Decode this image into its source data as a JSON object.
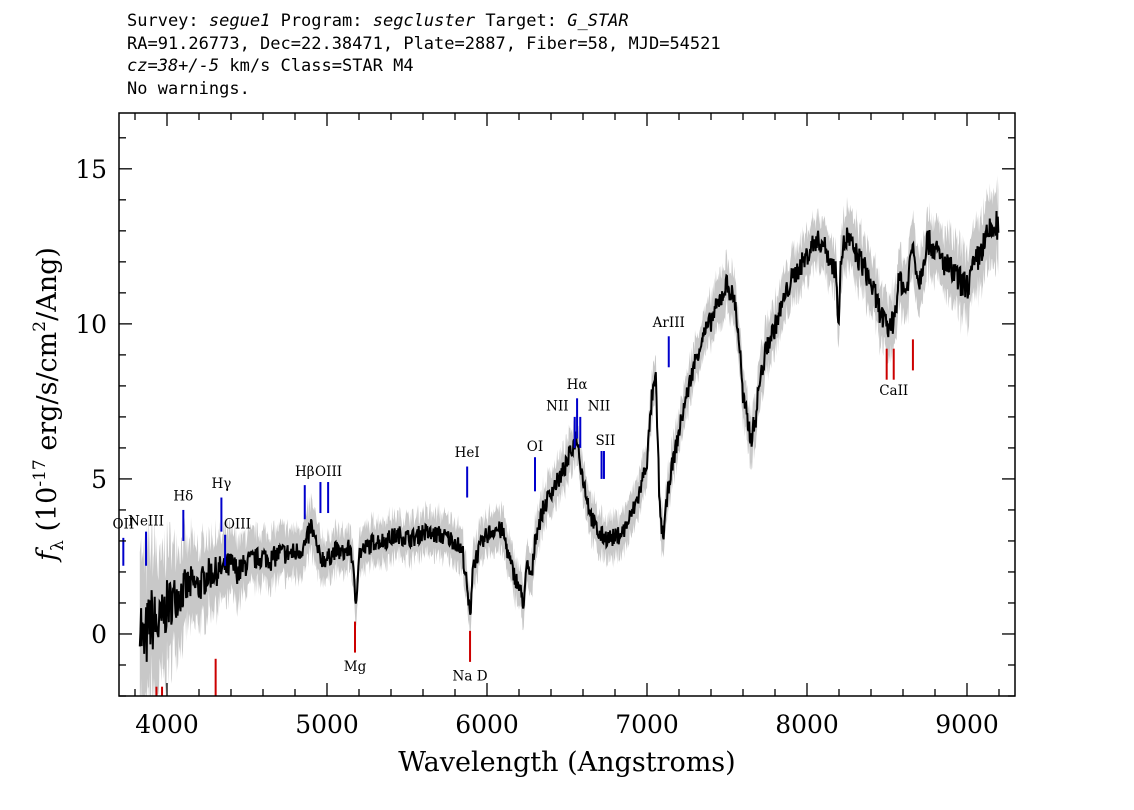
{
  "header": {
    "survey_label": "Survey:",
    "survey": "segue1",
    "program_label": "Program:",
    "program": "segcluster",
    "target_label": "Target:",
    "target": "G_STAR",
    "line2": "RA=91.26773, Dec=22.38471, Plate=2887, Fiber=58, MJD=54521",
    "cz": "cz=38+/-5",
    "cz_rest": "km/s Class=STAR M4",
    "warnings": "No warnings."
  },
  "chart_data": {
    "type": "line",
    "xlabel": "Wavelength (Angstroms)",
    "ylabel_main": "f",
    "ylabel_sub": "λ",
    "ylabel_pre": "(10",
    "ylabel_exp": "-17",
    "ylabel_mid": "erg/s/cm",
    "ylabel_exp2": "2",
    "ylabel_post": "/Ang)",
    "xlim": [
      3700,
      9300
    ],
    "ylim": [
      -2,
      16.8
    ],
    "x_ticks": [
      4000,
      5000,
      6000,
      7000,
      8000,
      9000
    ],
    "y_ticks": [
      0,
      5,
      10,
      15
    ],
    "series": [
      {
        "role": "flux",
        "color": "#000000",
        "x": [
          3830,
          3850,
          3900,
          3950,
          4000,
          4050,
          4100,
          4150,
          4200,
          4250,
          4300,
          4350,
          4400,
          4450,
          4500,
          4550,
          4600,
          4650,
          4700,
          4750,
          4800,
          4850,
          4870,
          4900,
          4950,
          5000,
          5050,
          5100,
          5150,
          5180,
          5200,
          5250,
          5300,
          5350,
          5400,
          5450,
          5500,
          5550,
          5600,
          5650,
          5700,
          5750,
          5800,
          5850,
          5880,
          5895,
          5910,
          5950,
          6000,
          6050,
          6100,
          6150,
          6200,
          6230,
          6250,
          6280,
          6300,
          6350,
          6400,
          6450,
          6500,
          6560,
          6600,
          6650,
          6700,
          6750,
          6800,
          6850,
          6900,
          6950,
          7000,
          7030,
          7055,
          7080,
          7100,
          7140,
          7180,
          7230,
          7300,
          7350,
          7400,
          7450,
          7500,
          7550,
          7580,
          7600,
          7650,
          7680,
          7700,
          7750,
          7800,
          7850,
          7900,
          7950,
          8000,
          8050,
          8100,
          8150,
          8183,
          8195,
          8210,
          8250,
          8300,
          8350,
          8400,
          8450,
          8500,
          8540,
          8580,
          8620,
          8660,
          8700,
          8750,
          8800,
          8850,
          8900,
          8950,
          9000,
          9050,
          9100,
          9150,
          9200
        ],
        "y": [
          0.8,
          -0.5,
          0.5,
          0.2,
          0.9,
          1.2,
          1.4,
          1.6,
          1.5,
          1.9,
          2.0,
          2.1,
          2.2,
          2.0,
          2.3,
          2.4,
          2.5,
          2.4,
          2.6,
          2.6,
          2.6,
          2.8,
          2.9,
          3.5,
          2.5,
          2.4,
          2.7,
          2.6,
          2.8,
          1.0,
          2.6,
          2.8,
          3.0,
          3.0,
          3.1,
          3.2,
          3.1,
          3.1,
          3.3,
          3.2,
          3.2,
          3.1,
          3.0,
          2.6,
          1.2,
          0.5,
          2.2,
          2.7,
          3.2,
          3.4,
          3.3,
          2.2,
          1.5,
          1.0,
          2.2,
          1.8,
          3.1,
          4.0,
          4.6,
          5.0,
          5.5,
          6.4,
          5.0,
          3.8,
          3.2,
          3.1,
          3.1,
          3.3,
          3.8,
          4.5,
          5.6,
          7.6,
          8.2,
          4.0,
          3.1,
          5.0,
          6.0,
          7.3,
          8.8,
          9.6,
          10.1,
          10.7,
          11.3,
          10.7,
          9.2,
          7.6,
          6.3,
          7.0,
          8.0,
          9.3,
          9.9,
          10.7,
          11.4,
          11.8,
          12.2,
          12.7,
          12.6,
          12.0,
          11.7,
          9.7,
          12.2,
          12.8,
          12.3,
          11.9,
          11.3,
          10.5,
          9.8,
          10.1,
          11.5,
          11.0,
          12.6,
          11.3,
          12.7,
          12.4,
          12.0,
          11.7,
          11.4,
          11.2,
          11.9,
          12.5,
          13.0,
          13.2
        ]
      },
      {
        "role": "error",
        "color": "#bfbfbf",
        "band": [
          2.0,
          2.0,
          1.8,
          1.6,
          1.4,
          1.2,
          1.1,
          1.0,
          0.9,
          0.9,
          0.8,
          0.8,
          0.8,
          0.7,
          0.7,
          0.6,
          0.6,
          0.6,
          0.6,
          0.6,
          0.6,
          0.6,
          0.6,
          0.6,
          0.6,
          0.5,
          0.5,
          0.5,
          0.5,
          0.5,
          0.5,
          0.5,
          0.5,
          0.5,
          0.5,
          0.5,
          0.5,
          0.5,
          0.5,
          0.5,
          0.5,
          0.5,
          0.5,
          0.5,
          0.5,
          0.5,
          0.5,
          0.5,
          0.5,
          0.5,
          0.5,
          0.5,
          0.5,
          0.5,
          0.5,
          0.5,
          0.5,
          0.5,
          0.5,
          0.5,
          0.5,
          0.5,
          0.5,
          0.5,
          0.5,
          0.5,
          0.5,
          0.5,
          0.5,
          0.5,
          0.5,
          0.5,
          0.5,
          0.5,
          0.5,
          0.5,
          0.5,
          0.5,
          0.5,
          0.5,
          0.6,
          0.6,
          0.6,
          0.6,
          0.6,
          0.6,
          0.6,
          0.6,
          0.6,
          0.6,
          0.6,
          0.6,
          0.6,
          0.6,
          0.6,
          0.6,
          0.6,
          0.6,
          0.6,
          0.6,
          0.7,
          0.7,
          0.7,
          0.7,
          0.7,
          0.7,
          0.7,
          0.7,
          0.7,
          0.7,
          0.7,
          0.7,
          0.7,
          0.7,
          0.7,
          0.8,
          0.8,
          0.8,
          0.8,
          0.8,
          0.9,
          0.9
        ]
      }
    ],
    "emission_lines": [
      {
        "label": "OII",
        "x": 3727,
        "y0": 2.2,
        "y1": 3.1,
        "lx": 3727,
        "ly": 3.4,
        "color": "#0000cc"
      },
      {
        "label": "NeIII",
        "x": 3869,
        "y0": 2.2,
        "y1": 3.3,
        "lx": 3869,
        "ly": 3.5,
        "color": "#0000cc"
      },
      {
        "label": "Hδ",
        "x": 4102,
        "y0": 3.0,
        "y1": 4.0,
        "lx": 4102,
        "ly": 4.3,
        "color": "#0000cc"
      },
      {
        "label": "Hγ",
        "x": 4340,
        "y0": 3.3,
        "y1": 4.4,
        "lx": 4340,
        "ly": 4.7,
        "color": "#0000cc"
      },
      {
        "label": "OIII",
        "x": 4363,
        "y0": 2.2,
        "y1": 3.2,
        "lx": 4440,
        "ly": 3.4,
        "color": "#0000cc"
      },
      {
        "label": "Hβ",
        "x": 4861,
        "y0": 3.7,
        "y1": 4.8,
        "lx": 4861,
        "ly": 5.1,
        "color": "#0000cc"
      },
      {
        "label": "OIII",
        "x": 4959,
        "y0": 3.9,
        "y1": 4.9,
        "lx": 5010,
        "ly": 5.1,
        "color": "#0000cc"
      },
      {
        "label": "OIII",
        "x": 5007,
        "y0": 3.9,
        "y1": 4.9,
        "lx": null,
        "ly": null,
        "color": "#0000cc"
      },
      {
        "label": "HeI",
        "x": 5876,
        "y0": 4.4,
        "y1": 5.4,
        "lx": 5876,
        "ly": 5.7,
        "color": "#0000cc"
      },
      {
        "label": "OI",
        "x": 6300,
        "y0": 4.6,
        "y1": 5.7,
        "lx": 6300,
        "ly": 5.9,
        "color": "#0000cc"
      },
      {
        "label": "NII",
        "x": 6548,
        "y0": 6.0,
        "y1": 7.0,
        "lx": 6440,
        "ly": 7.2,
        "color": "#0000cc"
      },
      {
        "label": "Hα",
        "x": 6563,
        "y0": 6.3,
        "y1": 7.6,
        "lx": 6563,
        "ly": 7.9,
        "color": "#0000cc"
      },
      {
        "label": "NII",
        "x": 6583,
        "y0": 6.0,
        "y1": 7.0,
        "lx": 6700,
        "ly": 7.2,
        "color": "#0000cc"
      },
      {
        "label": "SII",
        "x": 6716,
        "y0": 5.0,
        "y1": 5.9,
        "lx": 6740,
        "ly": 6.1,
        "color": "#0000cc"
      },
      {
        "label": "SII",
        "x": 6731,
        "y0": 5.0,
        "y1": 5.9,
        "lx": null,
        "ly": null,
        "color": "#0000cc"
      },
      {
        "label": "ArIII",
        "x": 7136,
        "y0": 8.6,
        "y1": 9.6,
        "lx": 7136,
        "ly": 9.9,
        "color": "#0000cc"
      }
    ],
    "absorption_lines": [
      {
        "label": "",
        "x": 3934,
        "y0": -2.0,
        "y1": -1.7,
        "lx": null,
        "ly": null,
        "color": "#cc0000"
      },
      {
        "label": "",
        "x": 3969,
        "y0": -2.0,
        "y1": -1.7,
        "lx": null,
        "ly": null,
        "color": "#cc0000"
      },
      {
        "label": "",
        "x": 4304,
        "y0": -2.0,
        "y1": -0.8,
        "lx": null,
        "ly": null,
        "color": "#cc0000"
      },
      {
        "label": "Mg",
        "x": 5175,
        "y0": -0.6,
        "y1": 0.4,
        "lx": 5175,
        "ly": -1.2,
        "color": "#cc0000"
      },
      {
        "label": "Na D",
        "x": 5894,
        "y0": -0.9,
        "y1": 0.1,
        "lx": 5894,
        "ly": -1.5,
        "color": "#cc0000"
      },
      {
        "label": "CaII",
        "x": 8498,
        "y0": 8.2,
        "y1": 9.2,
        "lx": 8542,
        "ly": 7.7,
        "color": "#cc0000"
      },
      {
        "label": "CaII",
        "x": 8542,
        "y0": 8.2,
        "y1": 9.2,
        "lx": null,
        "ly": null,
        "color": "#cc0000"
      },
      {
        "label": "CaII",
        "x": 8662,
        "y0": 8.5,
        "y1": 9.5,
        "lx": null,
        "ly": null,
        "color": "#cc0000"
      }
    ]
  }
}
